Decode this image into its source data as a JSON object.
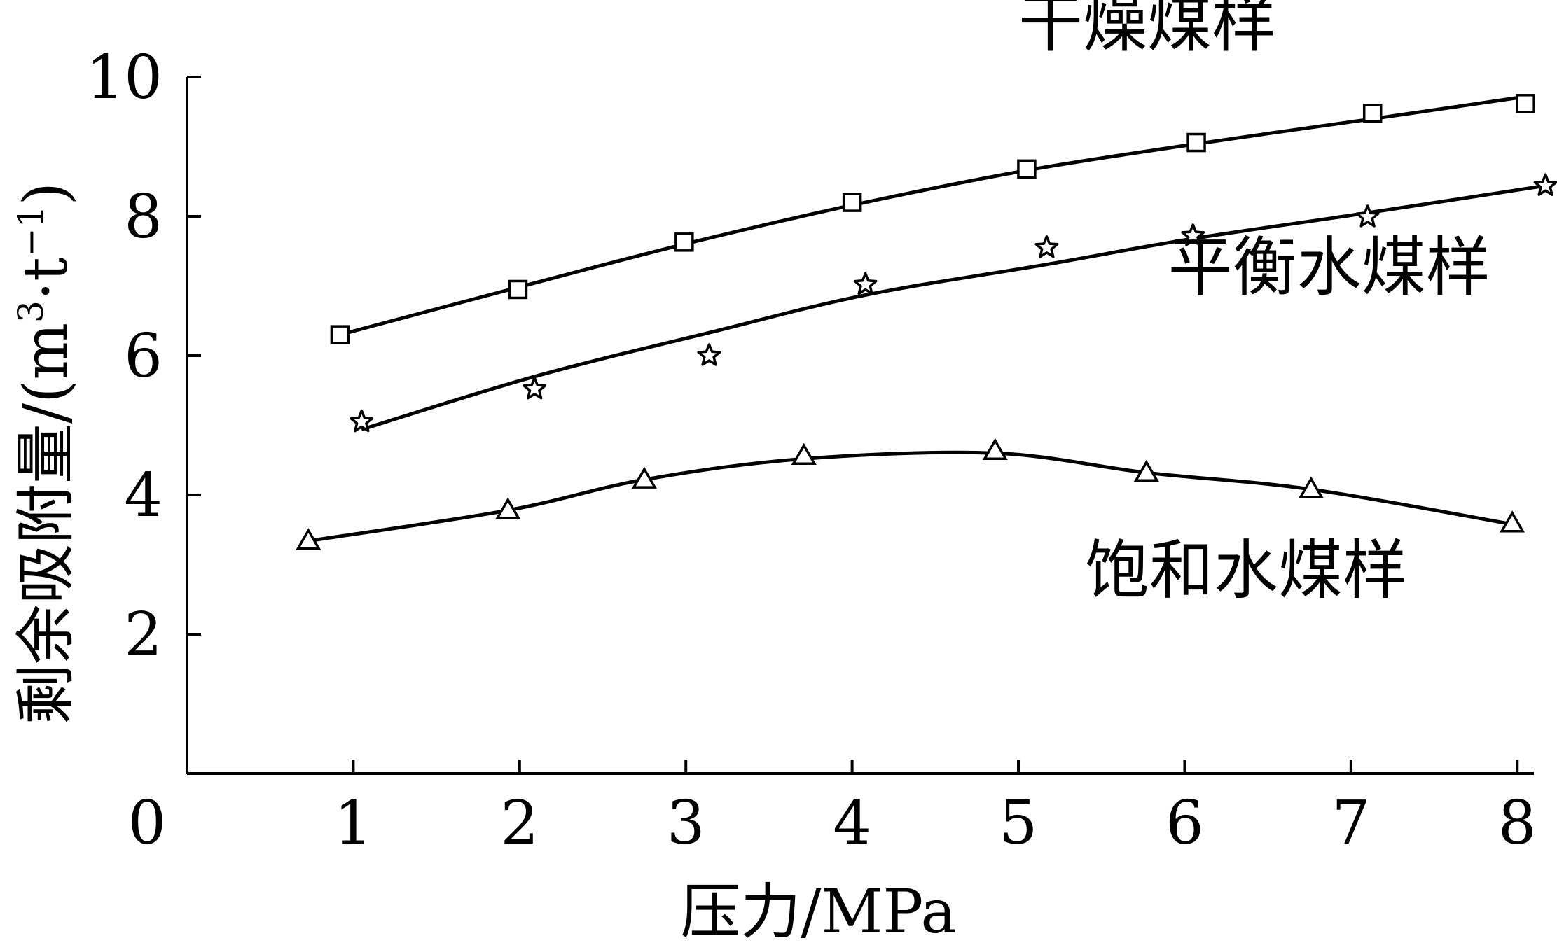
{
  "chart_data": {
    "type": "line",
    "title": "",
    "xlabel": "压力/MPa",
    "ylabel": {
      "main": "剩余吸附量/(m",
      "sup1": "3",
      "mid": "·t",
      "sup2": "−1",
      "close": ")"
    },
    "xlim": [
      0,
      8.1
    ],
    "ylim": [
      0,
      10
    ],
    "origin_label": "0",
    "xticks": [
      {
        "value": 1,
        "label": "1"
      },
      {
        "value": 2,
        "label": "2"
      },
      {
        "value": 3,
        "label": "3"
      },
      {
        "value": 4,
        "label": "4"
      },
      {
        "value": 5,
        "label": "5"
      },
      {
        "value": 6,
        "label": "6"
      },
      {
        "value": 7,
        "label": "7"
      },
      {
        "value": 8,
        "label": "8"
      }
    ],
    "yticks": [
      {
        "value": 2,
        "label": "2"
      },
      {
        "value": 4,
        "label": "4"
      },
      {
        "value": 6,
        "label": "6"
      },
      {
        "value": 8,
        "label": "8"
      },
      {
        "value": 10,
        "label": "10"
      }
    ],
    "grid": false,
    "legend": "inline labels",
    "series": [
      {
        "name": "干燥煤样",
        "marker": "square",
        "label_anchor": {
          "x": 5.0,
          "y": 10.45
        },
        "x": [
          0.92,
          1.99,
          2.99,
          4.0,
          5.05,
          6.07,
          7.13,
          8.05
        ],
        "y": [
          6.3,
          6.95,
          7.63,
          8.2,
          8.68,
          9.06,
          9.48,
          9.62
        ],
        "fit_x": [
          0.92,
          1.99,
          2.99,
          4.0,
          5.05,
          6.07,
          7.13,
          8.05
        ],
        "fit_y": [
          6.3,
          6.98,
          7.6,
          8.16,
          8.66,
          9.04,
          9.4,
          9.72
        ]
      },
      {
        "name": "平衡水煤样",
        "marker": "star",
        "label_anchor": {
          "x": 5.9,
          "y": 6.95
        },
        "x": [
          1.05,
          2.09,
          3.14,
          4.08,
          5.17,
          6.05,
          7.1,
          8.17
        ],
        "y": [
          5.05,
          5.52,
          6.0,
          7.02,
          7.55,
          7.72,
          7.99,
          8.44
        ],
        "fit_x": [
          1.05,
          2.09,
          3.14,
          4.08,
          5.17,
          6.05,
          7.1,
          8.17
        ],
        "fit_y": [
          4.94,
          5.7,
          6.33,
          6.87,
          7.31,
          7.68,
          8.05,
          8.44
        ]
      },
      {
        "name": "饱和水煤样",
        "marker": "triangle",
        "label_anchor": {
          "x": 5.4,
          "y": 2.6
        },
        "x": [
          0.73,
          1.93,
          2.75,
          3.71,
          4.86,
          5.77,
          6.76,
          7.97
        ],
        "y": [
          3.34,
          3.78,
          4.22,
          4.56,
          4.63,
          4.32,
          4.08,
          3.59
        ],
        "fit_x": [
          0.73,
          1.93,
          2.75,
          3.71,
          4.86,
          5.77,
          6.76,
          7.97
        ],
        "fit_y": [
          3.34,
          3.78,
          4.22,
          4.52,
          4.6,
          4.32,
          4.08,
          3.58
        ]
      }
    ]
  }
}
